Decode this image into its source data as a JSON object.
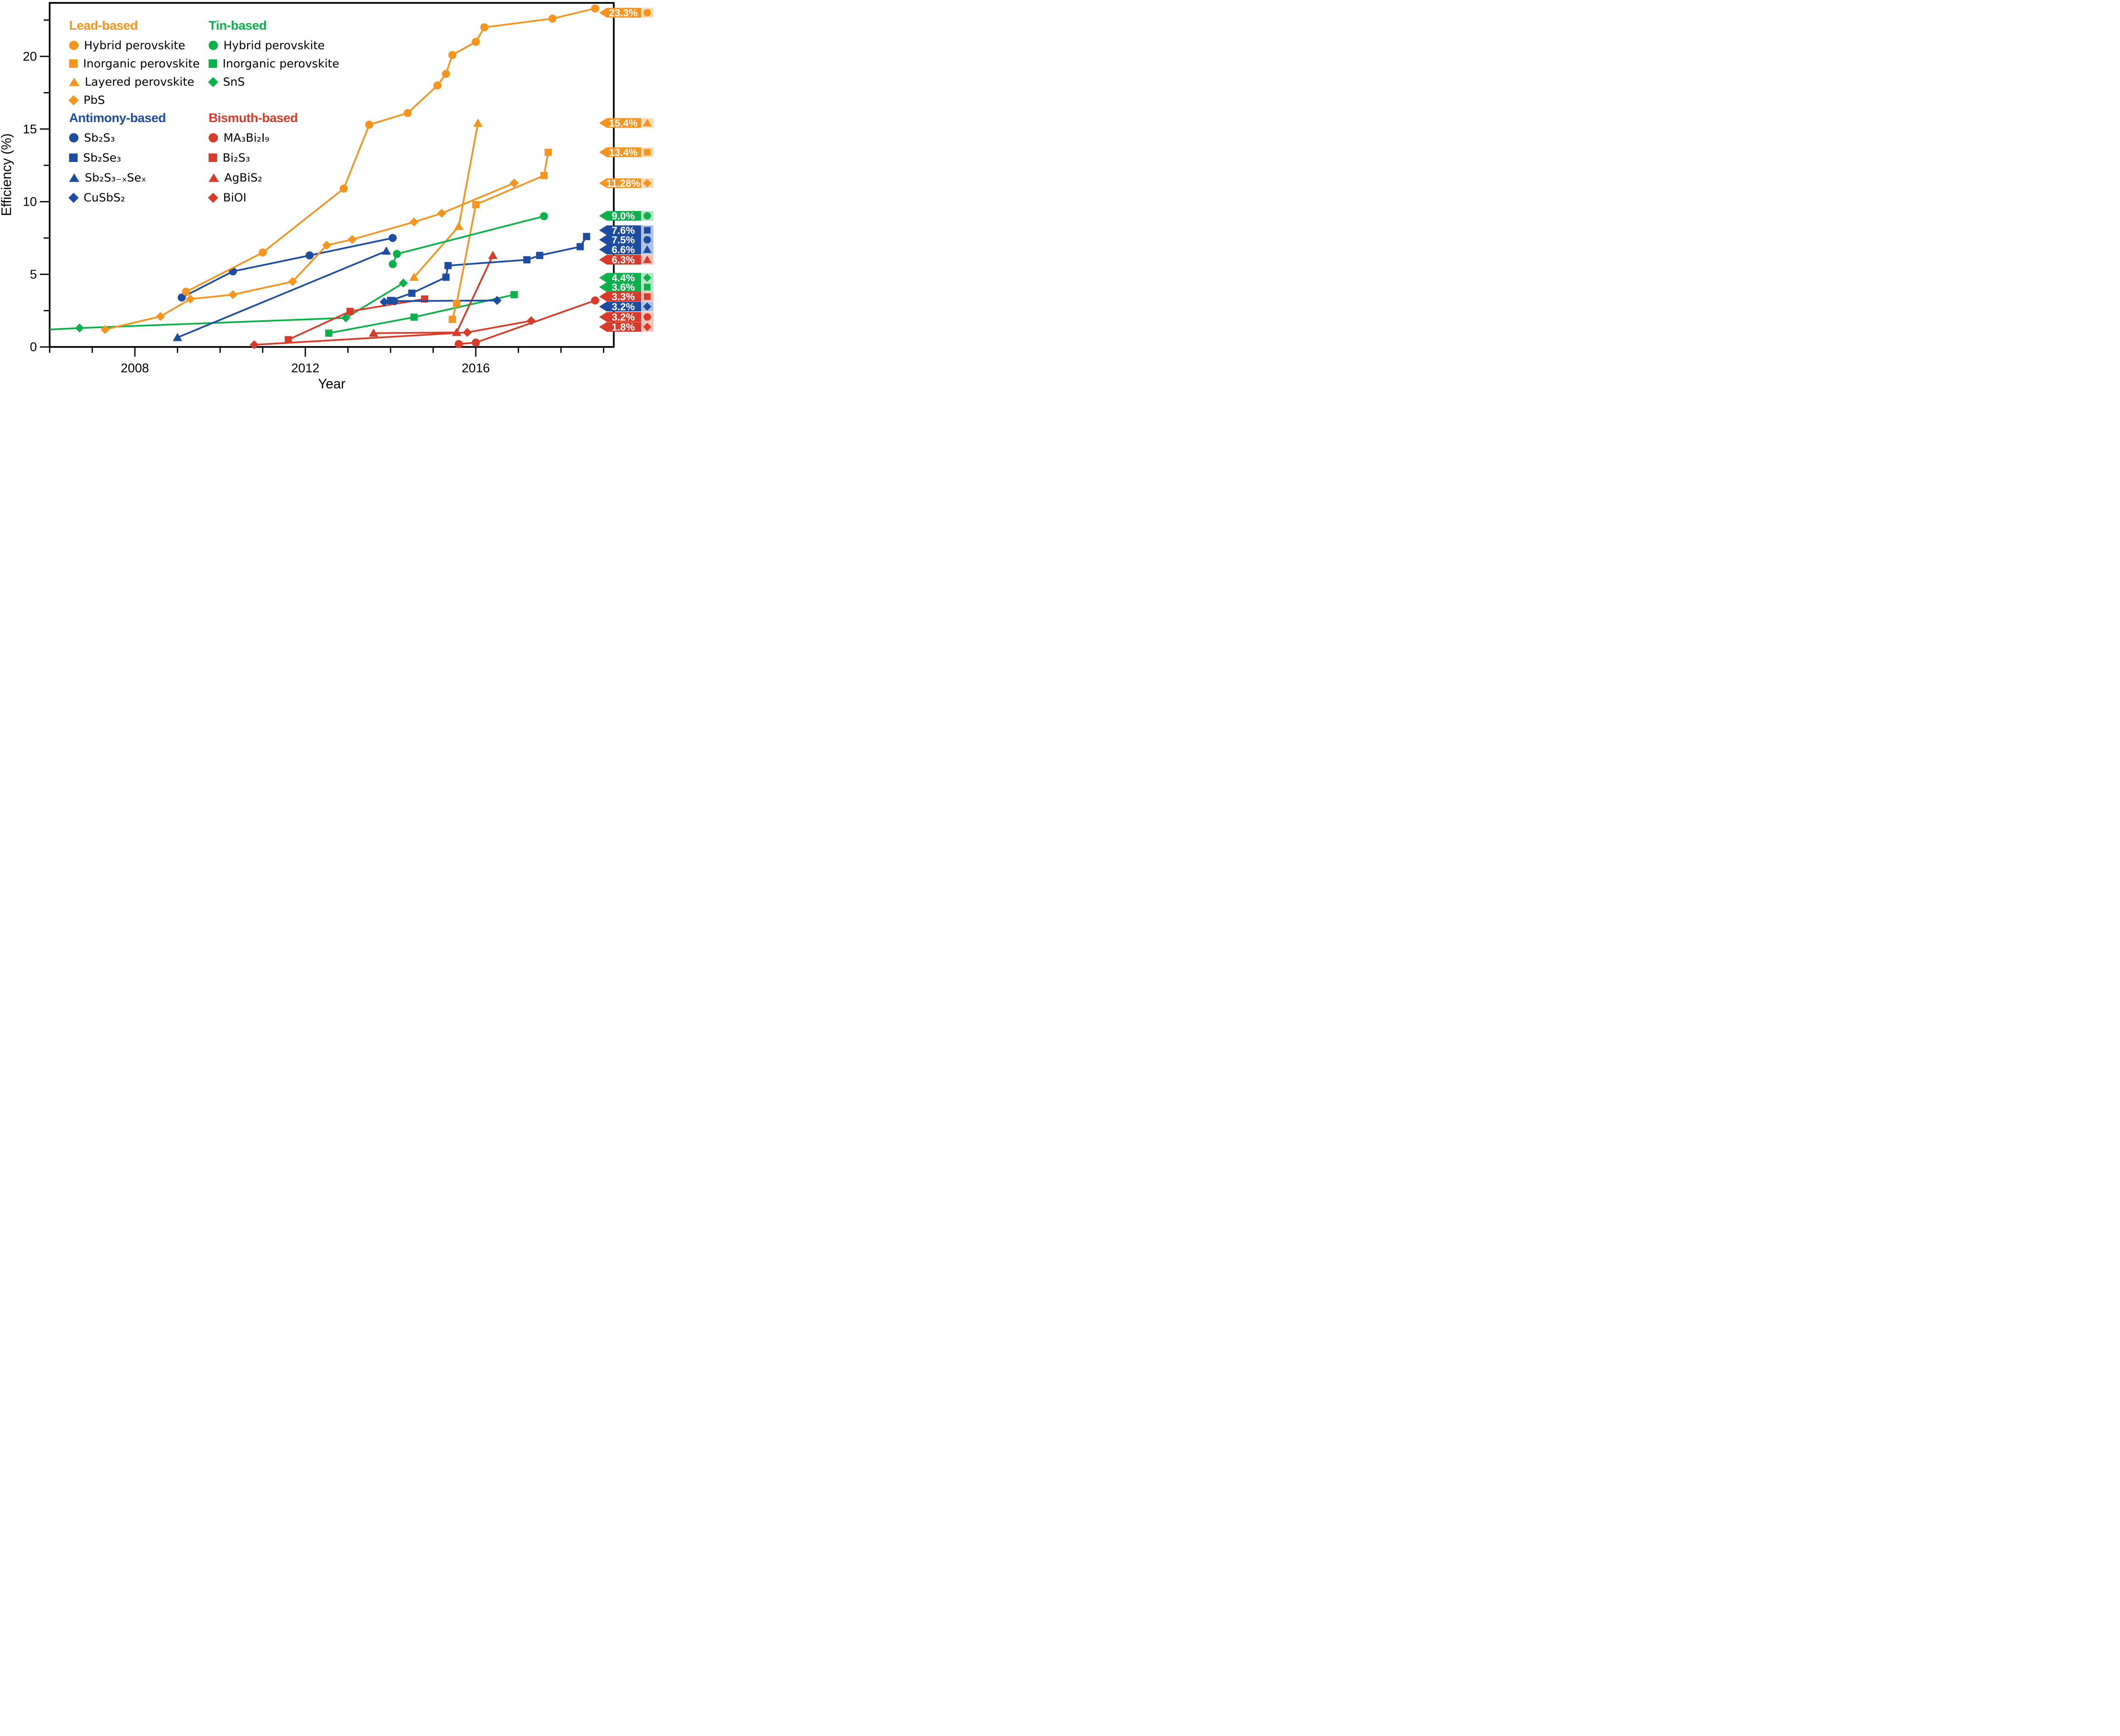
{
  "figure": {
    "xlabel": "Year",
    "ylabel": "Efficiency (%)",
    "x_tick_labels": [
      "2008",
      "2012",
      "2016"
    ],
    "y_tick_labels": [
      "0",
      "5",
      "10",
      "15",
      "20"
    ]
  },
  "legend": {
    "groups": [
      {
        "title": "Lead-based",
        "color": "#F7941E",
        "items": [
          {
            "marker": "circle",
            "label": "Hybrid perovskite"
          },
          {
            "marker": "square",
            "label": "Inorganic perovskite"
          },
          {
            "marker": "triangle",
            "label": "Layered perovskite"
          },
          {
            "marker": "diamond",
            "label": "PbS"
          }
        ]
      },
      {
        "title": "Tin-based",
        "color": "#0DB14B",
        "items": [
          {
            "marker": "circle",
            "label": "Hybrid perovskite"
          },
          {
            "marker": "square",
            "label": "Inorganic perovskite"
          },
          {
            "marker": "diamond",
            "label": "SnS"
          }
        ]
      },
      {
        "title": "Antimony-based",
        "color": "#1E4CA1",
        "items": [
          {
            "marker": "circle",
            "label": "Sb₂S₃"
          },
          {
            "marker": "square",
            "label": "Sb₂Se₃"
          },
          {
            "marker": "triangle",
            "label": "Sb₂S₃₋ₓSeₓ"
          },
          {
            "marker": "diamond",
            "label": "CuSbS₂"
          }
        ]
      },
      {
        "title": "Bismuth-based",
        "color": "#D93B2B",
        "items": [
          {
            "marker": "circle",
            "label": "MA₃Bi₂I₉"
          },
          {
            "marker": "square",
            "label": "Bi₂S₃"
          },
          {
            "marker": "triangle",
            "label": "AgBiS₂"
          },
          {
            "marker": "diamond",
            "label": "BiOI"
          }
        ]
      }
    ]
  },
  "chart_data": {
    "type": "line",
    "title": "",
    "xlabel": "Year",
    "ylabel": "Efficiency (%)",
    "x_range": [
      2006,
      2019.25
    ],
    "y_range": [
      0,
      23.7
    ],
    "x_ticks_major": [
      2008,
      2012,
      2016
    ],
    "x_ticks_minor_step": 1,
    "y_ticks_major": [
      0,
      5,
      10,
      15,
      20
    ],
    "y_ticks_minor_step": 2.5,
    "grid": false,
    "legend_position": "upper-left-inside",
    "families": {
      "lead": {
        "color": "#F7941E",
        "light": "#FBDCB6"
      },
      "tin": {
        "color": "#0DB14B",
        "light": "#B6E3C5"
      },
      "antimony": {
        "color": "#1E4CA1",
        "light": "#AEC3E4"
      },
      "bismuth": {
        "color": "#D93B2B",
        "light": "#F4C3BC"
      }
    },
    "series": [
      {
        "key": "pb-hybrid",
        "name": "Hybrid perovskite (lead)",
        "family": "lead",
        "marker": "circle",
        "record_label": "23.3%",
        "points": [
          [
            2009.2,
            3.8
          ],
          [
            2011.0,
            6.5
          ],
          [
            2012.9,
            10.9
          ],
          [
            2013.5,
            15.3
          ],
          [
            2014.4,
            16.1
          ],
          [
            2015.1,
            18.0
          ],
          [
            2015.3,
            18.8
          ],
          [
            2015.45,
            20.1
          ],
          [
            2016.0,
            21.0
          ],
          [
            2016.2,
            22.0
          ],
          [
            2017.8,
            22.6
          ],
          [
            2018.8,
            23.3
          ]
        ]
      },
      {
        "key": "pb-inorganic",
        "name": "Inorganic perovskite (lead)",
        "family": "lead",
        "marker": "square",
        "record_label": "13.4%",
        "points": [
          [
            2015.45,
            1.9
          ],
          [
            2015.55,
            3.0
          ],
          [
            2016.0,
            9.8
          ],
          [
            2017.6,
            11.8
          ],
          [
            2017.7,
            13.4
          ]
        ]
      },
      {
        "key": "pb-layered",
        "name": "Layered perovskite",
        "family": "lead",
        "marker": "triangle",
        "record_label": "15.4%",
        "points": [
          [
            2014.55,
            4.8
          ],
          [
            2015.6,
            8.3
          ],
          [
            2016.05,
            15.4
          ]
        ]
      },
      {
        "key": "pbs",
        "name": "PbS",
        "family": "lead",
        "marker": "diamond",
        "record_label": "11.28%",
        "points": [
          [
            2007.3,
            1.2
          ],
          [
            2008.6,
            2.1
          ],
          [
            2009.3,
            3.3
          ],
          [
            2010.3,
            3.6
          ],
          [
            2011.7,
            4.5
          ],
          [
            2012.5,
            7.0
          ],
          [
            2013.1,
            7.4
          ],
          [
            2014.55,
            8.6
          ],
          [
            2015.2,
            9.2
          ],
          [
            2016.9,
            11.28
          ]
        ]
      },
      {
        "key": "sn-hybrid",
        "name": "Hybrid perovskite (tin)",
        "family": "tin",
        "marker": "circle",
        "record_label": "9.0%",
        "points": [
          [
            2014.05,
            5.7
          ],
          [
            2014.15,
            6.4
          ],
          [
            2017.6,
            9.0
          ]
        ]
      },
      {
        "key": "sn-inorganic",
        "name": "Inorganic perovskite (tin)",
        "family": "tin",
        "marker": "square",
        "record_label": "3.6%",
        "points": [
          [
            2012.55,
            0.95
          ],
          [
            2014.55,
            2.05
          ],
          [
            2016.9,
            3.6
          ]
        ]
      },
      {
        "key": "sns",
        "name": "SnS",
        "family": "tin",
        "marker": "diamond",
        "record_label": "4.4%",
        "prepoints": [
          [
            2006.0,
            1.2
          ]
        ],
        "points": [
          [
            2006.7,
            1.3
          ],
          [
            2012.95,
            2.0
          ],
          [
            2014.3,
            4.4
          ]
        ]
      },
      {
        "key": "sb2s3",
        "name": "Sb2S3",
        "family": "antimony",
        "marker": "circle",
        "record_label": "7.5%",
        "points": [
          [
            2009.1,
            3.4
          ],
          [
            2010.3,
            5.2
          ],
          [
            2012.1,
            6.3
          ],
          [
            2014.05,
            7.5
          ]
        ]
      },
      {
        "key": "sb2se3",
        "name": "Sb2Se3",
        "family": "antimony",
        "marker": "square",
        "record_label": "7.6%",
        "points": [
          [
            2014.0,
            3.2
          ],
          [
            2014.5,
            3.7
          ],
          [
            2015.3,
            4.8
          ],
          [
            2015.35,
            5.6
          ],
          [
            2017.2,
            6.0
          ],
          [
            2017.5,
            6.3
          ],
          [
            2018.45,
            6.9
          ],
          [
            2018.6,
            7.6
          ]
        ]
      },
      {
        "key": "sb2s3xsex",
        "name": "Sb2S3-xSex",
        "family": "antimony",
        "marker": "triangle",
        "record_label": "6.6%",
        "points": [
          [
            2009.0,
            0.65
          ],
          [
            2013.9,
            6.6
          ]
        ]
      },
      {
        "key": "cusbs2",
        "name": "CuSbS2",
        "family": "antimony",
        "marker": "diamond",
        "record_label": "3.2%",
        "points": [
          [
            2013.85,
            3.1
          ],
          [
            2014.1,
            3.15
          ],
          [
            2016.5,
            3.2
          ]
        ]
      },
      {
        "key": "ma3bi2i9",
        "name": "MA3Bi2I9",
        "family": "bismuth",
        "marker": "circle",
        "record_label": "3.2%",
        "points": [
          [
            2015.6,
            0.2
          ],
          [
            2016.0,
            0.3
          ],
          [
            2018.8,
            3.2
          ]
        ]
      },
      {
        "key": "bi2s3",
        "name": "Bi2S3",
        "family": "bismuth",
        "marker": "square",
        "record_label": "3.3%",
        "points": [
          [
            2011.6,
            0.5
          ],
          [
            2013.05,
            2.45
          ],
          [
            2014.8,
            3.3
          ]
        ]
      },
      {
        "key": "agbis2",
        "name": "AgBiS2",
        "family": "bismuth",
        "marker": "triangle",
        "record_label": "6.3%",
        "points": [
          [
            2013.6,
            0.95
          ],
          [
            2015.55,
            1.0
          ],
          [
            2016.4,
            6.3
          ]
        ]
      },
      {
        "key": "bioi",
        "name": "BiOI",
        "family": "bismuth",
        "marker": "diamond",
        "record_label": "1.8%",
        "points": [
          [
            2010.8,
            0.15
          ],
          [
            2015.8,
            1.0
          ],
          [
            2017.3,
            1.8
          ]
        ]
      }
    ],
    "flags": [
      {
        "series": "pb-hybrid",
        "label": "23.3%",
        "marker": "circle",
        "family": "lead"
      },
      {
        "series": "pb-layered",
        "label": "15.4%",
        "marker": "triangle",
        "family": "lead"
      },
      {
        "series": "pb-inorganic",
        "label": "13.4%",
        "marker": "square",
        "family": "lead"
      },
      {
        "series": "pbs",
        "label": "11.28%",
        "marker": "diamond",
        "family": "lead"
      },
      {
        "series": "sn-hybrid",
        "label": "9.0%",
        "marker": "circle",
        "family": "tin"
      },
      {
        "series": "sb2se3",
        "label": "7.6%",
        "marker": "square",
        "family": "antimony"
      },
      {
        "series": "sb2s3",
        "label": "7.5%",
        "marker": "circle",
        "family": "antimony"
      },
      {
        "series": "sb2s3xsex",
        "label": "6.6%",
        "marker": "triangle",
        "family": "antimony"
      },
      {
        "series": "agbis2",
        "label": "6.3%",
        "marker": "triangle",
        "family": "bismuth"
      },
      {
        "series": "sns",
        "label": "4.4%",
        "marker": "diamond",
        "family": "tin"
      },
      {
        "series": "sn-inorganic",
        "label": "3.6%",
        "marker": "square",
        "family": "tin"
      },
      {
        "series": "bi2s3",
        "label": "3.3%",
        "marker": "square",
        "family": "bismuth"
      },
      {
        "series": "cusbs2",
        "label": "3.2%",
        "marker": "diamond",
        "family": "antimony"
      },
      {
        "series": "ma3bi2i9",
        "label": "3.2%",
        "marker": "circle",
        "family": "bismuth"
      },
      {
        "series": "bioi",
        "label": "1.8%",
        "marker": "diamond",
        "family": "bismuth"
      }
    ]
  }
}
